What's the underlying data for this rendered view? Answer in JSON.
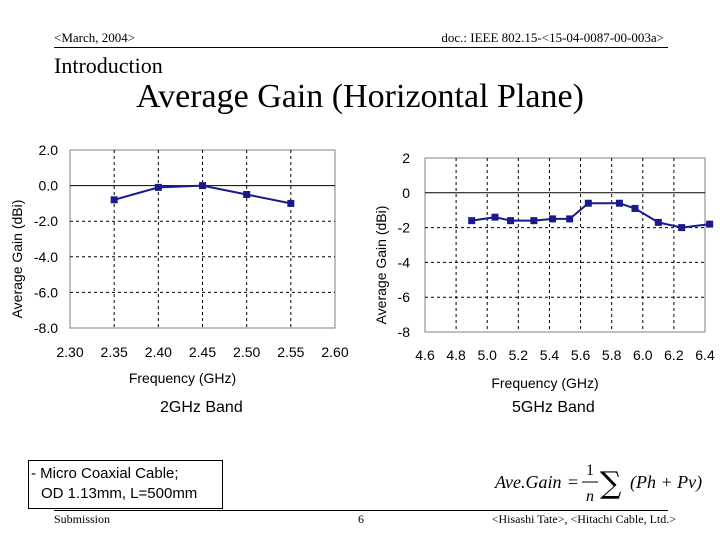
{
  "header": {
    "date": "<March, 2004>",
    "doc": "doc.: IEEE 802.15-<15-04-0087-00-003a>"
  },
  "section_title": "Introduction",
  "slide_title": "Average Gain (Horizontal Plane)",
  "colors": {
    "series": "#1a1a8c",
    "grid": "#000000",
    "plot_bg": "#ffffff"
  },
  "chart_data": [
    {
      "type": "line",
      "title": "",
      "caption": "2GHz Band",
      "xlabel": "Frequency (GHz)",
      "ylabel": "Average Gain (dBi)",
      "x_ticks": [
        "2.30",
        "2.35",
        "2.40",
        "2.45",
        "2.50",
        "2.55",
        "2.60"
      ],
      "y_ticks": [
        "2.0",
        "0.0",
        "-2.0",
        "-4.0",
        "-6.0",
        "-8.0"
      ],
      "xlim": [
        2.3,
        2.6
      ],
      "ylim": [
        -8.0,
        2.0
      ],
      "x_grid_step": 0.05,
      "y_grid_step": 2.0,
      "grid": true,
      "series": [
        {
          "name": "Average Gain",
          "x": [
            2.35,
            2.4,
            2.45,
            2.5,
            2.55
          ],
          "values": [
            -0.8,
            -0.1,
            0.0,
            -0.5,
            -1.0
          ]
        }
      ]
    },
    {
      "type": "line",
      "title": "",
      "caption": "5GHz Band",
      "xlabel": "Frequency (GHz)",
      "ylabel": "Average Gain (dBi)",
      "x_ticks": [
        "4.6",
        "4.8",
        "5.0",
        "5.2",
        "5.4",
        "5.6",
        "5.8",
        "6.0",
        "6.2",
        "6.4"
      ],
      "y_ticks": [
        "2",
        "0",
        "-2",
        "-4",
        "-6",
        "-8"
      ],
      "xlim": [
        4.6,
        6.4
      ],
      "ylim": [
        -8,
        2
      ],
      "x_grid_step": 0.2,
      "y_grid_step": 2,
      "grid": true,
      "series": [
        {
          "name": "Average Gain",
          "x": [
            4.9,
            5.05,
            5.15,
            5.3,
            5.42,
            5.53,
            5.65,
            5.85,
            5.95,
            6.1,
            6.25,
            6.43
          ],
          "values": [
            -1.6,
            -1.4,
            -1.6,
            -1.6,
            -1.5,
            -1.5,
            -0.6,
            -0.6,
            -0.9,
            -1.7,
            -2.0,
            -1.8
          ]
        }
      ]
    }
  ],
  "note": {
    "line1": "- Micro Coaxial Cable;",
    "line2": "OD 1.13mm, L=500mm"
  },
  "formula": {
    "lhs": "Ave.Gain",
    "eq": "=",
    "num": "1",
    "den": "n",
    "sum": "∑",
    "body": "(Ph + Pv)"
  },
  "footer": {
    "left": "Submission",
    "center": "6",
    "right": "<Hisashi Tate>, <Hitachi Cable, Ltd.>"
  }
}
